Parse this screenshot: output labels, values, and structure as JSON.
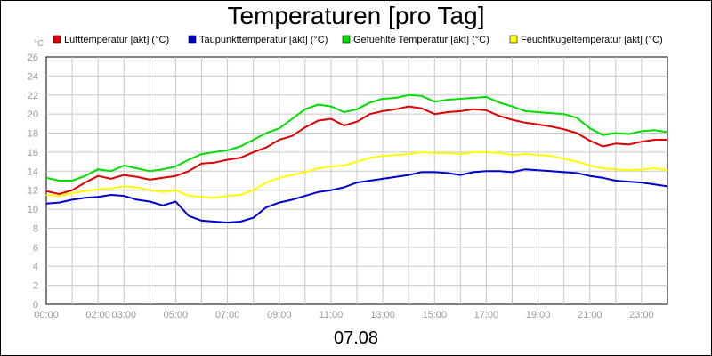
{
  "chart_data": {
    "type": "line",
    "title": "Temperaturen [pro Tag]",
    "xlabel": "07.08",
    "ylabel": "°C",
    "ylim": [
      0,
      26
    ],
    "xlim": [
      0,
      24
    ],
    "grid": true,
    "legend": "top",
    "y_ticks": [
      "0",
      "2",
      "4",
      "6",
      "8",
      "10",
      "12",
      "14",
      "16",
      "18",
      "20",
      "22",
      "24",
      "26"
    ],
    "x_ticks": [
      {
        "h": 0,
        "label": "00:00"
      },
      {
        "h": 2,
        "label": "02:00"
      },
      {
        "h": 3,
        "label": "03:00"
      },
      {
        "h": 5,
        "label": "05:00"
      },
      {
        "h": 7,
        "label": "07:00"
      },
      {
        "h": 9,
        "label": "09:00"
      },
      {
        "h": 11,
        "label": "11:00"
      },
      {
        "h": 13,
        "label": "13:00"
      },
      {
        "h": 15,
        "label": "15:00"
      },
      {
        "h": 17,
        "label": "17:00"
      },
      {
        "h": 19,
        "label": "19:00"
      },
      {
        "h": 21,
        "label": "21:00"
      },
      {
        "h": 23,
        "label": "23:00"
      }
    ],
    "series": [
      {
        "name": "Lufttemperatur [akt] (°C)",
        "color": "#e00000",
        "points": [
          [
            0,
            11.9
          ],
          [
            0.5,
            11.6
          ],
          [
            1,
            12.0
          ],
          [
            1.5,
            12.8
          ],
          [
            2,
            13.5
          ],
          [
            2.5,
            13.2
          ],
          [
            3,
            13.6
          ],
          [
            3.5,
            13.4
          ],
          [
            4,
            13.1
          ],
          [
            4.5,
            13.3
          ],
          [
            5,
            13.5
          ],
          [
            5.5,
            14.0
          ],
          [
            6,
            14.8
          ],
          [
            6.5,
            14.9
          ],
          [
            7,
            15.2
          ],
          [
            7.5,
            15.4
          ],
          [
            8,
            16.0
          ],
          [
            8.5,
            16.5
          ],
          [
            9,
            17.3
          ],
          [
            9.5,
            17.7
          ],
          [
            10,
            18.6
          ],
          [
            10.5,
            19.3
          ],
          [
            11,
            19.5
          ],
          [
            11.5,
            18.8
          ],
          [
            12,
            19.2
          ],
          [
            12.5,
            20.0
          ],
          [
            13,
            20.3
          ],
          [
            13.5,
            20.5
          ],
          [
            14,
            20.8
          ],
          [
            14.5,
            20.6
          ],
          [
            15,
            20.0
          ],
          [
            15.5,
            20.2
          ],
          [
            16,
            20.3
          ],
          [
            16.5,
            20.5
          ],
          [
            17,
            20.4
          ],
          [
            17.5,
            19.8
          ],
          [
            18,
            19.4
          ],
          [
            18.5,
            19.1
          ],
          [
            19,
            18.9
          ],
          [
            19.5,
            18.7
          ],
          [
            20,
            18.4
          ],
          [
            20.5,
            18.0
          ],
          [
            21,
            17.2
          ],
          [
            21.5,
            16.6
          ],
          [
            22,
            16.9
          ],
          [
            22.5,
            16.8
          ],
          [
            23,
            17.1
          ],
          [
            23.5,
            17.3
          ],
          [
            24,
            17.3
          ]
        ]
      },
      {
        "name": "Taupunkttemperatur [akt] (°C)",
        "color": "#0000cc",
        "points": [
          [
            0,
            10.6
          ],
          [
            0.5,
            10.7
          ],
          [
            1,
            11.0
          ],
          [
            1.5,
            11.2
          ],
          [
            2,
            11.3
          ],
          [
            2.5,
            11.5
          ],
          [
            3,
            11.4
          ],
          [
            3.5,
            11.0
          ],
          [
            4,
            10.8
          ],
          [
            4.5,
            10.4
          ],
          [
            5,
            10.8
          ],
          [
            5.5,
            9.3
          ],
          [
            6,
            8.8
          ],
          [
            6.5,
            8.7
          ],
          [
            7,
            8.6
          ],
          [
            7.5,
            8.7
          ],
          [
            8,
            9.1
          ],
          [
            8.5,
            10.2
          ],
          [
            9,
            10.7
          ],
          [
            9.5,
            11.0
          ],
          [
            10,
            11.4
          ],
          [
            10.5,
            11.8
          ],
          [
            11,
            12.0
          ],
          [
            11.5,
            12.3
          ],
          [
            12,
            12.8
          ],
          [
            12.5,
            13.0
          ],
          [
            13,
            13.2
          ],
          [
            13.5,
            13.4
          ],
          [
            14,
            13.6
          ],
          [
            14.5,
            13.9
          ],
          [
            15,
            13.9
          ],
          [
            15.5,
            13.8
          ],
          [
            16,
            13.6
          ],
          [
            16.5,
            13.9
          ],
          [
            17,
            14.0
          ],
          [
            17.5,
            14.0
          ],
          [
            18,
            13.9
          ],
          [
            18.5,
            14.2
          ],
          [
            19,
            14.1
          ],
          [
            19.5,
            14.0
          ],
          [
            20,
            13.9
          ],
          [
            20.5,
            13.8
          ],
          [
            21,
            13.5
          ],
          [
            21.5,
            13.3
          ],
          [
            22,
            13.0
          ],
          [
            22.5,
            12.9
          ],
          [
            23,
            12.8
          ],
          [
            23.5,
            12.6
          ],
          [
            24,
            12.4
          ]
        ]
      },
      {
        "name": "Gefuehlte Temperatur [akt] (°C)",
        "color": "#00dd00",
        "points": [
          [
            0,
            13.3
          ],
          [
            0.5,
            13.0
          ],
          [
            1,
            13.0
          ],
          [
            1.5,
            13.5
          ],
          [
            2,
            14.2
          ],
          [
            2.5,
            14.0
          ],
          [
            3,
            14.6
          ],
          [
            3.5,
            14.3
          ],
          [
            4,
            14.0
          ],
          [
            4.5,
            14.2
          ],
          [
            5,
            14.5
          ],
          [
            5.5,
            15.2
          ],
          [
            6,
            15.8
          ],
          [
            6.5,
            16.0
          ],
          [
            7,
            16.2
          ],
          [
            7.5,
            16.6
          ],
          [
            8,
            17.3
          ],
          [
            8.5,
            18.0
          ],
          [
            9,
            18.5
          ],
          [
            9.5,
            19.5
          ],
          [
            10,
            20.5
          ],
          [
            10.5,
            21.0
          ],
          [
            11,
            20.8
          ],
          [
            11.5,
            20.2
          ],
          [
            12,
            20.5
          ],
          [
            12.5,
            21.2
          ],
          [
            13,
            21.6
          ],
          [
            13.5,
            21.7
          ],
          [
            14,
            22.0
          ],
          [
            14.5,
            21.9
          ],
          [
            15,
            21.3
          ],
          [
            15.5,
            21.5
          ],
          [
            16,
            21.6
          ],
          [
            16.5,
            21.7
          ],
          [
            17,
            21.8
          ],
          [
            17.5,
            21.2
          ],
          [
            18,
            20.8
          ],
          [
            18.5,
            20.3
          ],
          [
            19,
            20.2
          ],
          [
            19.5,
            20.1
          ],
          [
            20,
            20.0
          ],
          [
            20.5,
            19.6
          ],
          [
            21,
            18.5
          ],
          [
            21.5,
            17.8
          ],
          [
            22,
            18.0
          ],
          [
            22.5,
            17.9
          ],
          [
            23,
            18.2
          ],
          [
            23.5,
            18.3
          ],
          [
            24,
            18.1
          ]
        ]
      },
      {
        "name": "Feuchtkugeltemperatur [akt] (°C)",
        "color": "#ffff00",
        "points": [
          [
            0,
            11.5
          ],
          [
            0.5,
            11.4
          ],
          [
            1,
            11.7
          ],
          [
            1.5,
            11.9
          ],
          [
            2,
            12.1
          ],
          [
            2.5,
            12.2
          ],
          [
            3,
            12.4
          ],
          [
            3.5,
            12.3
          ],
          [
            4,
            12.0
          ],
          [
            4.5,
            11.8
          ],
          [
            5,
            12.0
          ],
          [
            5.5,
            11.4
          ],
          [
            6,
            11.3
          ],
          [
            6.5,
            11.2
          ],
          [
            7,
            11.4
          ],
          [
            7.5,
            11.5
          ],
          [
            8,
            12.0
          ],
          [
            8.5,
            12.8
          ],
          [
            9,
            13.3
          ],
          [
            9.5,
            13.6
          ],
          [
            10,
            13.9
          ],
          [
            10.5,
            14.3
          ],
          [
            11,
            14.5
          ],
          [
            11.5,
            14.6
          ],
          [
            12,
            15.0
          ],
          [
            12.5,
            15.4
          ],
          [
            13,
            15.6
          ],
          [
            13.5,
            15.7
          ],
          [
            14,
            15.8
          ],
          [
            14.5,
            16.0
          ],
          [
            15,
            15.9
          ],
          [
            15.5,
            15.9
          ],
          [
            16,
            15.8
          ],
          [
            16.5,
            16.0
          ],
          [
            17,
            16.0
          ],
          [
            17.5,
            15.9
          ],
          [
            18,
            15.7
          ],
          [
            18.5,
            15.8
          ],
          [
            19,
            15.7
          ],
          [
            19.5,
            15.6
          ],
          [
            20,
            15.3
          ],
          [
            20.5,
            15.0
          ],
          [
            21,
            14.6
          ],
          [
            21.5,
            14.3
          ],
          [
            22,
            14.2
          ],
          [
            22.5,
            14.1
          ],
          [
            23,
            14.2
          ],
          [
            23.5,
            14.3
          ],
          [
            24,
            14.1
          ]
        ]
      }
    ]
  }
}
